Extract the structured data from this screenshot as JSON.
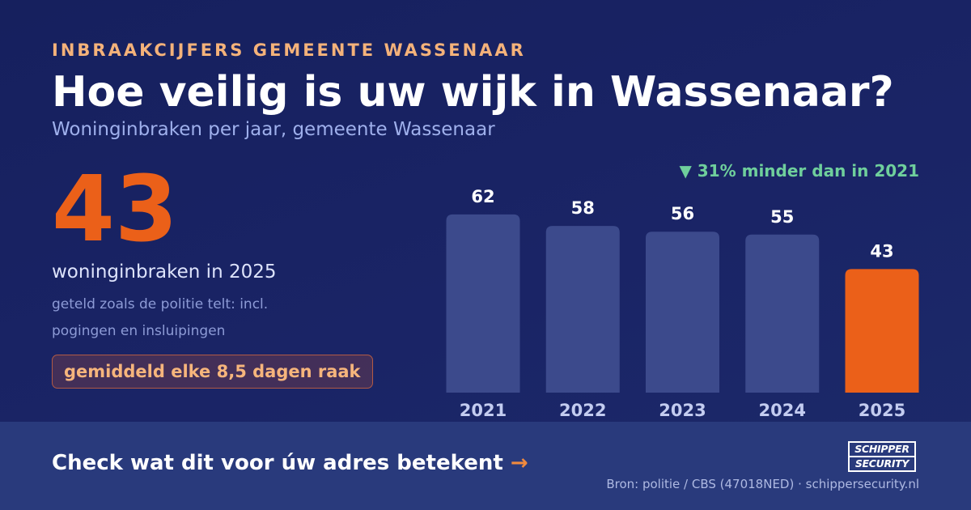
{
  "header": {
    "eyebrow": "INBRAAKCIJFERS GEMEENTE WASSENAAR",
    "title": "Hoe veilig is uw wijk in Wassenaar?",
    "subtitle": "Woninginbraken per jaar, gemeente Wassenaar"
  },
  "stat": {
    "value": "43",
    "caption": "woninginbraken in 2025",
    "note": "geteld zoals de politie telt: incl. pogingen en insluipingen",
    "badge": "gemiddeld elke 8,5 dagen raak"
  },
  "trend": {
    "icon": "triangle-down-icon",
    "text": "▼ 31% minder dan in 2021",
    "color": "#6fcf9c"
  },
  "chart_data": {
    "type": "bar",
    "categories": [
      "2021",
      "2022",
      "2023",
      "2024",
      "2025"
    ],
    "values": [
      62,
      58,
      56,
      55,
      43
    ],
    "title": "",
    "xlabel": "",
    "ylabel": "",
    "ylim": [
      0,
      70
    ],
    "grid": false,
    "data_labels": true,
    "bar_color": "#3c4a8c",
    "highlight_color": "#eb6019",
    "highlight_index": 4
  },
  "footer": {
    "cta": "Check wat dit voor úw adres betekent",
    "cta_arrow": "→",
    "source": "Bron: politie / CBS (47018NED) · schippersecurity.nl",
    "logo_line1": "SCHIPPER",
    "logo_line2": "SECURITY"
  }
}
